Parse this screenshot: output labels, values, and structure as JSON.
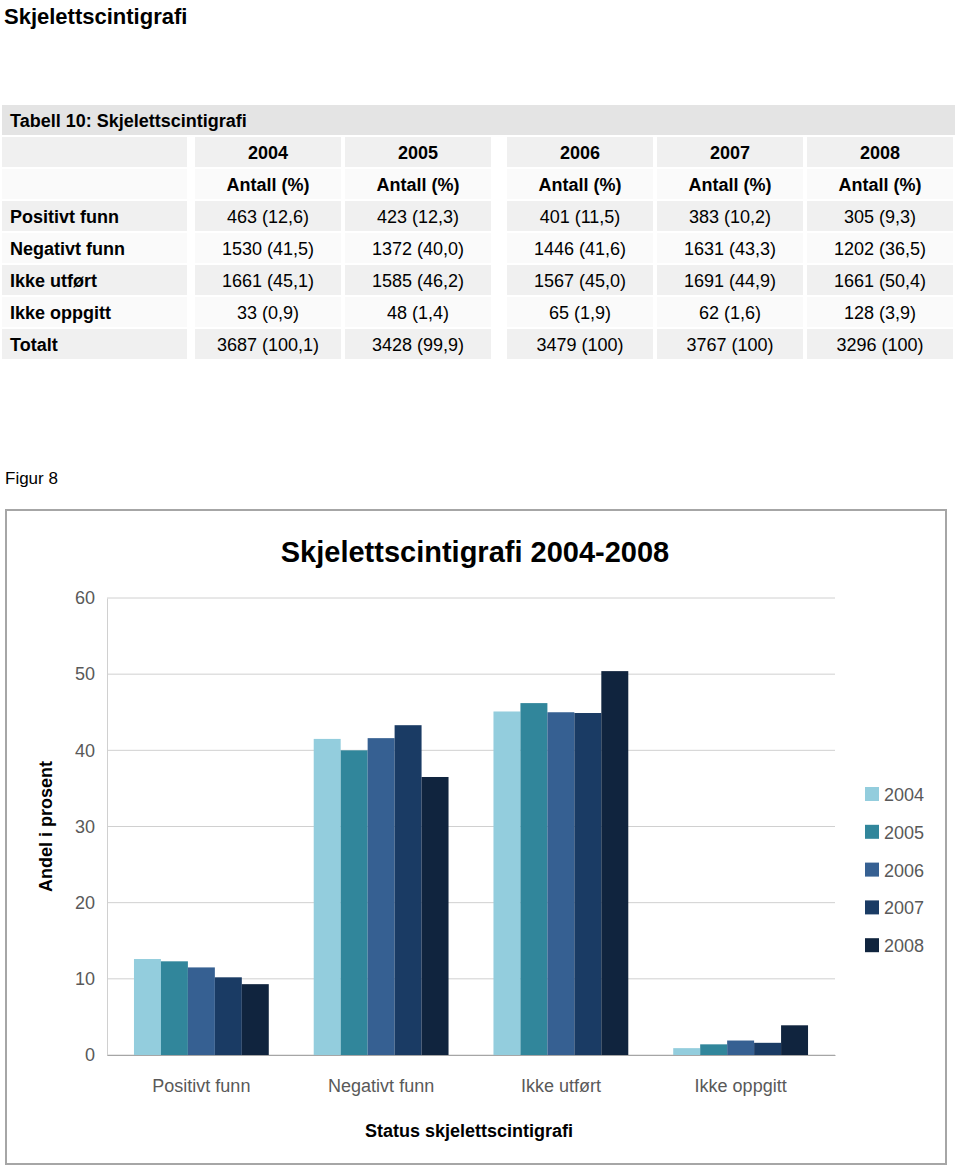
{
  "heading": "Skjelettscintigrafi",
  "table": {
    "title": "Tabell 10: Skjelettscintigrafi",
    "columns": [
      "2004",
      "2005",
      "2006",
      "2007",
      "2008"
    ],
    "units": [
      "Antall (%)",
      "Antall (%)",
      "Antall (%)",
      "Antall (%)",
      "Antall (%)"
    ],
    "rows": [
      {
        "label": "Positivt funn",
        "cells": [
          "463 (12,6)",
          "423 (12,3)",
          "401 (11,5)",
          "383 (10,2)",
          "305 (9,3)"
        ]
      },
      {
        "label": "Negativt funn",
        "cells": [
          "1530 (41,5)",
          "1372 (40,0)",
          "1446 (41,6)",
          "1631 (43,3)",
          "1202 (36,5)"
        ]
      },
      {
        "label": "Ikke utført",
        "cells": [
          "1661 (45,1)",
          "1585 (46,2)",
          "1567 (45,0)",
          "1691 (44,9)",
          "1661 (50,4)"
        ]
      },
      {
        "label": "Ikke oppgitt",
        "cells": [
          "33 (0,9)",
          "48 (1,4)",
          "65 (1,9)",
          "62 (1,6)",
          "128 (3,9)"
        ]
      },
      {
        "label": "Totalt",
        "cells": [
          "3687 (100,1)",
          "3428 (99,9)",
          "3479 (100)",
          "3767 (100)",
          "3296 (100)"
        ]
      }
    ]
  },
  "figure_label": "Figur 8",
  "chart_data": {
    "type": "bar",
    "title": "Skjelettscintigrafi 2004-2008",
    "x_label": "Status skjelettscintigrafi",
    "y_label": "Andel i prosent",
    "categories": [
      "Positivt funn",
      "Negativt funn",
      "Ikke utført",
      "Ikke oppgitt"
    ],
    "series": [
      {
        "name": "2004",
        "color": "#93cddd",
        "values": [
          12.6,
          41.5,
          45.1,
          0.9
        ]
      },
      {
        "name": "2005",
        "color": "#31869b",
        "values": [
          12.3,
          40.0,
          46.2,
          1.4
        ]
      },
      {
        "name": "2006",
        "color": "#366092",
        "values": [
          11.5,
          41.6,
          45.0,
          1.9
        ]
      },
      {
        "name": "2007",
        "color": "#1a3b64",
        "values": [
          10.2,
          43.3,
          44.9,
          1.6
        ]
      },
      {
        "name": "2008",
        "color": "#10243e",
        "values": [
          9.3,
          36.5,
          50.4,
          3.9
        ]
      }
    ],
    "ylim": [
      0,
      60
    ],
    "yticks": [
      0,
      10,
      20,
      30,
      40,
      50,
      60
    ],
    "grid": true,
    "legend": "right"
  }
}
